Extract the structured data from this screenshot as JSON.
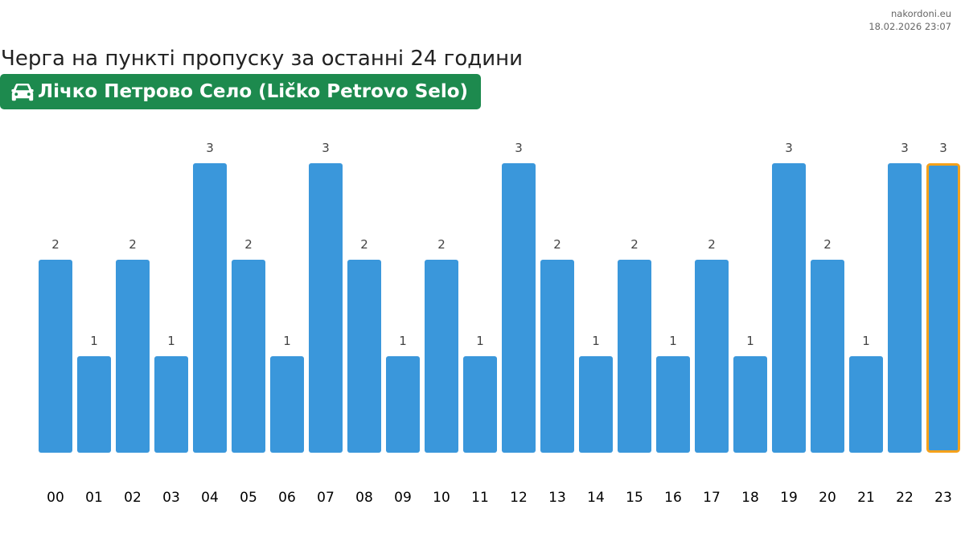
{
  "header": {
    "source": "nakordoni.eu",
    "timestamp": "18.02.2026 23:07",
    "title": "Черга на пункті пропуску за останні 24 години",
    "checkpoint_name": "Лічко Петрово Село (Ličko Petrovo Selo)",
    "checkpoint_icon": "car-icon"
  },
  "colors": {
    "bar": "#3a97db",
    "highlight_border": "#f5a11a",
    "badge": "#1d8a4e"
  },
  "chart_data": {
    "type": "bar",
    "categories": [
      "00",
      "01",
      "02",
      "03",
      "04",
      "05",
      "06",
      "07",
      "08",
      "09",
      "10",
      "11",
      "12",
      "13",
      "14",
      "15",
      "16",
      "17",
      "18",
      "19",
      "20",
      "21",
      "22",
      "23"
    ],
    "values": [
      2,
      1,
      2,
      1,
      3,
      2,
      1,
      3,
      2,
      1,
      2,
      1,
      3,
      2,
      1,
      2,
      1,
      2,
      1,
      3,
      2,
      1,
      3,
      3
    ],
    "highlighted_category": "23",
    "ylim": [
      0,
      3
    ],
    "grid": false,
    "title": "",
    "xlabel": "",
    "ylabel": ""
  }
}
